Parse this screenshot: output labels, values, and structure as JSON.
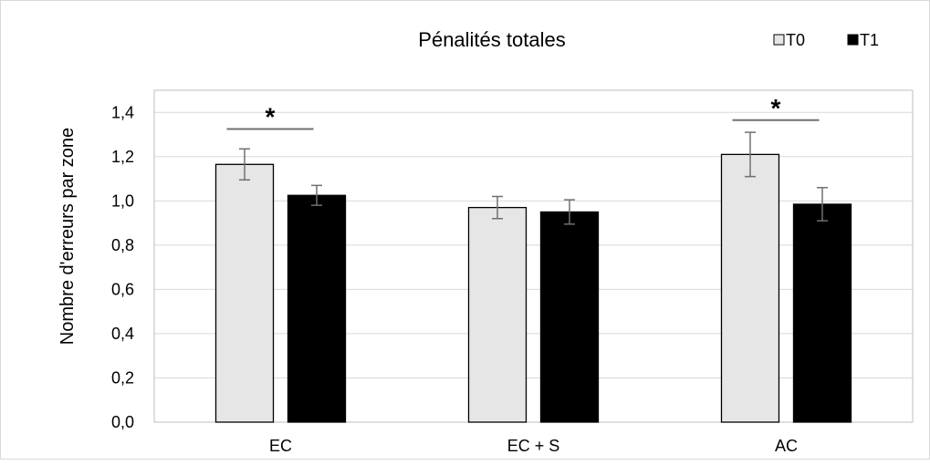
{
  "chart_data": {
    "type": "bar",
    "title": "Pénalités totales",
    "xlabel": "",
    "ylabel": "Nombre d'erreurs par zone",
    "ylim": [
      0,
      1.5
    ],
    "yticks": [
      "0,0",
      "0,2",
      "0,4",
      "0,6",
      "0,8",
      "1,0",
      "1,2",
      "1,4"
    ],
    "categories": [
      "EC",
      "EC + S",
      "AC"
    ],
    "series": [
      {
        "name": "T0",
        "color": "#e6e6e6",
        "values": [
          1.165,
          0.97,
          1.21
        ],
        "errors": [
          0.07,
          0.05,
          0.1
        ]
      },
      {
        "name": "T1",
        "color": "#000000",
        "values": [
          1.025,
          0.95,
          0.985
        ],
        "errors": [
          0.045,
          0.055,
          0.075
        ]
      }
    ],
    "grid": true,
    "legend_position": "top-right",
    "significance": [
      {
        "category": "EC",
        "label": "*",
        "level": 1.325
      },
      {
        "category": "AC",
        "label": "*",
        "level": 1.365
      }
    ]
  }
}
